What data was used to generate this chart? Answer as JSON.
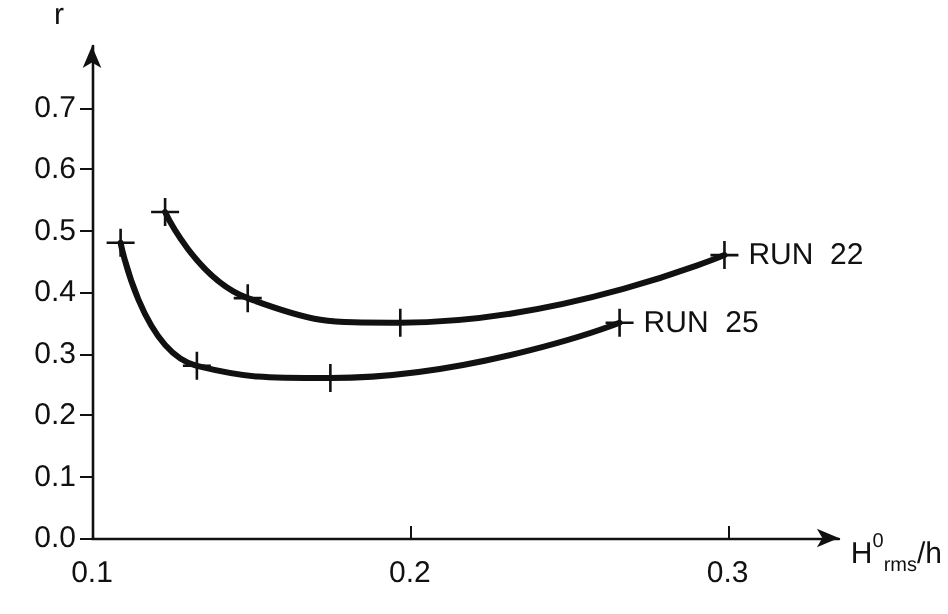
{
  "chart_data": {
    "type": "line",
    "xlabel": "H$^{0}$$_{rms}$/h",
    "ylabel": "r",
    "xlim": [
      0.1,
      0.335
    ],
    "xticks": [
      0.1,
      0.2,
      0.3
    ],
    "ylim": [
      0,
      0.8
    ],
    "yticks": [
      {
        "value": 0,
        "label": "0.0"
      },
      0.1,
      0.2,
      0.3,
      0.4,
      0.5,
      0.6,
      0.7
    ],
    "series": [
      {
        "name": "RUN  22",
        "color": "#111111",
        "x": [
          0.123,
          0.149,
          0.197,
          0.299
        ],
        "values": [
          0.53,
          0.39,
          0.35,
          0.46
        ]
      },
      {
        "name": "RUN  25",
        "color": "#111111",
        "x": [
          0.109,
          0.133,
          0.175,
          0.266
        ],
        "values": [
          0.48,
          0.28,
          0.26,
          0.35
        ]
      }
    ],
    "marker": "cross",
    "line_style": "solid",
    "grid": false,
    "legend": false
  }
}
